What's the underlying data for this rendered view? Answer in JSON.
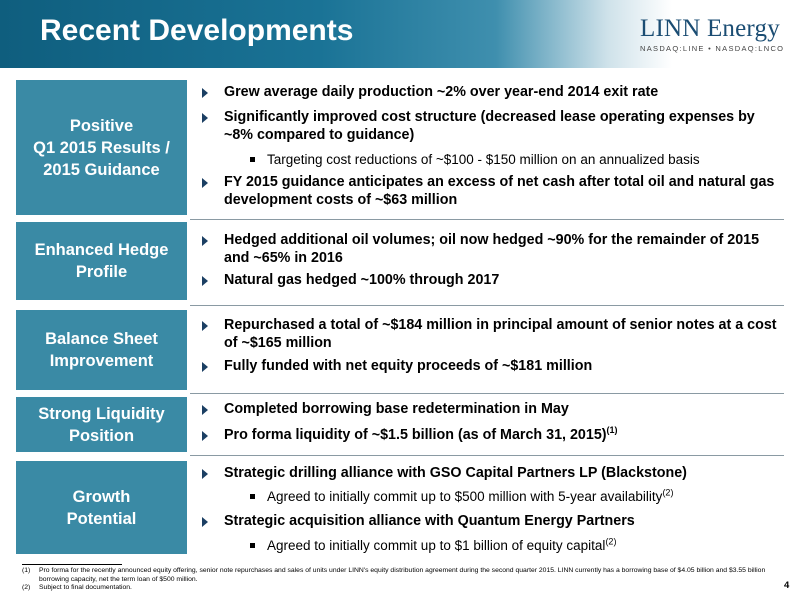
{
  "header": {
    "title": "Recent Developments",
    "logo_name": "LINN Energy",
    "logo_ticker": "NASDAQ:LINE • NASDAQ:LNCO"
  },
  "sections": [
    {
      "label_lines": [
        "Positive",
        "Q1 2015 Results /",
        "2015 Guidance"
      ],
      "bullets": [
        "Grew average daily production ~2% over year-end 2014 exit rate",
        "Significantly improved cost structure (decreased lease operating expenses by ~8% compared to guidance)",
        "FY 2015 guidance anticipates an excess of net cash after total oil and natural gas development costs of ~$63 million"
      ],
      "sub_bullets": [
        "Targeting cost reductions of ~$100 - $150 million on an annualized basis"
      ]
    },
    {
      "label_lines": [
        "Enhanced Hedge",
        "Profile"
      ],
      "bullets": [
        "Hedged additional oil volumes; oil now hedged ~90% for the remainder of 2015 and ~65% in 2016",
        "Natural gas hedged ~100% through 2017"
      ]
    },
    {
      "label_lines": [
        "Balance Sheet",
        "Improvement"
      ],
      "bullets": [
        "Repurchased a total of ~$184 million in principal amount of senior notes at a cost of ~$165 million",
        "Fully funded with net equity proceeds of ~$181 million"
      ]
    },
    {
      "label_lines": [
        "Strong Liquidity",
        "Position"
      ],
      "bullets": [
        "Completed borrowing base redetermination in May",
        "Pro forma liquidity of ~$1.5 billion (as of March 31, 2015)"
      ],
      "footnote_refs": [
        "(1)"
      ]
    },
    {
      "label_lines": [
        "Growth",
        "Potential"
      ],
      "bullets": [
        "Strategic drilling alliance with GSO Capital Partners LP (Blackstone)",
        "Strategic acquisition alliance with Quantum Energy Partners"
      ],
      "sub_bullets": [
        "Agreed to initially commit up to $500 million with 5-year availability",
        "Agreed to initially commit up to $1 billion of equity capital"
      ],
      "footnote_refs": [
        "(2)",
        "(2)"
      ]
    }
  ],
  "footnotes": [
    {
      "num": "(1)",
      "text": "Pro forma for the recently announced equity offering, senior note repurchases and sales of units under LINN's equity distribution agreement during the second quarter 2015. LINN currently has a borrowing base of $4.05 billion and $3.55 billion borrowing capacity, net the term loan of $500 million."
    },
    {
      "num": "(2)",
      "text": "Subject to final documentation."
    }
  ],
  "page_number": "4",
  "colors": {
    "header_blue": "#1a7396",
    "label_teal": "#3a8aa5",
    "bullet_navy": "#1b3f63",
    "logo_navy": "#1b4d73"
  }
}
